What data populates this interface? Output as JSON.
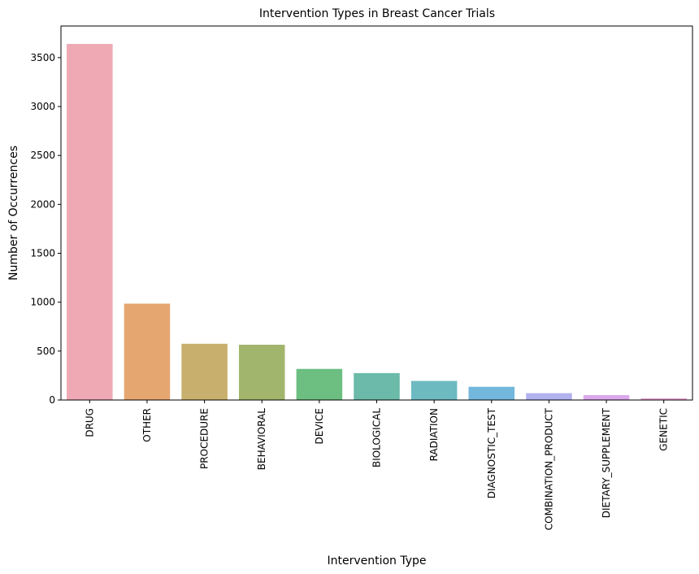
{
  "chart_data": {
    "type": "bar",
    "title": "Intervention Types in Breast Cancer Trials",
    "xlabel": "Intervention Type",
    "ylabel": "Number of Occurrences",
    "categories": [
      "DRUG",
      "OTHER",
      "PROCEDURE",
      "BEHAVIORAL",
      "DEVICE",
      "BIOLOGICAL",
      "RADIATION",
      "DIAGNOSTIC_TEST",
      "COMBINATION_PRODUCT",
      "DIETARY_SUPPLEMENT",
      "GENETIC"
    ],
    "values": [
      3640,
      985,
      575,
      565,
      318,
      275,
      195,
      135,
      70,
      50,
      18
    ],
    "colors": [
      "#EEA9B4",
      "#E6A670",
      "#C8AF6D",
      "#A2B56D",
      "#6CBE81",
      "#6CBAA9",
      "#6DBAC1",
      "#73B7DC",
      "#B2B2F0",
      "#DBA8EA",
      "#EBA6D6"
    ],
    "yticks": [
      0,
      500,
      1000,
      1500,
      2000,
      2500,
      3000,
      3500
    ],
    "ylim": [
      0,
      3823
    ],
    "grid": false,
    "legend": "none"
  }
}
